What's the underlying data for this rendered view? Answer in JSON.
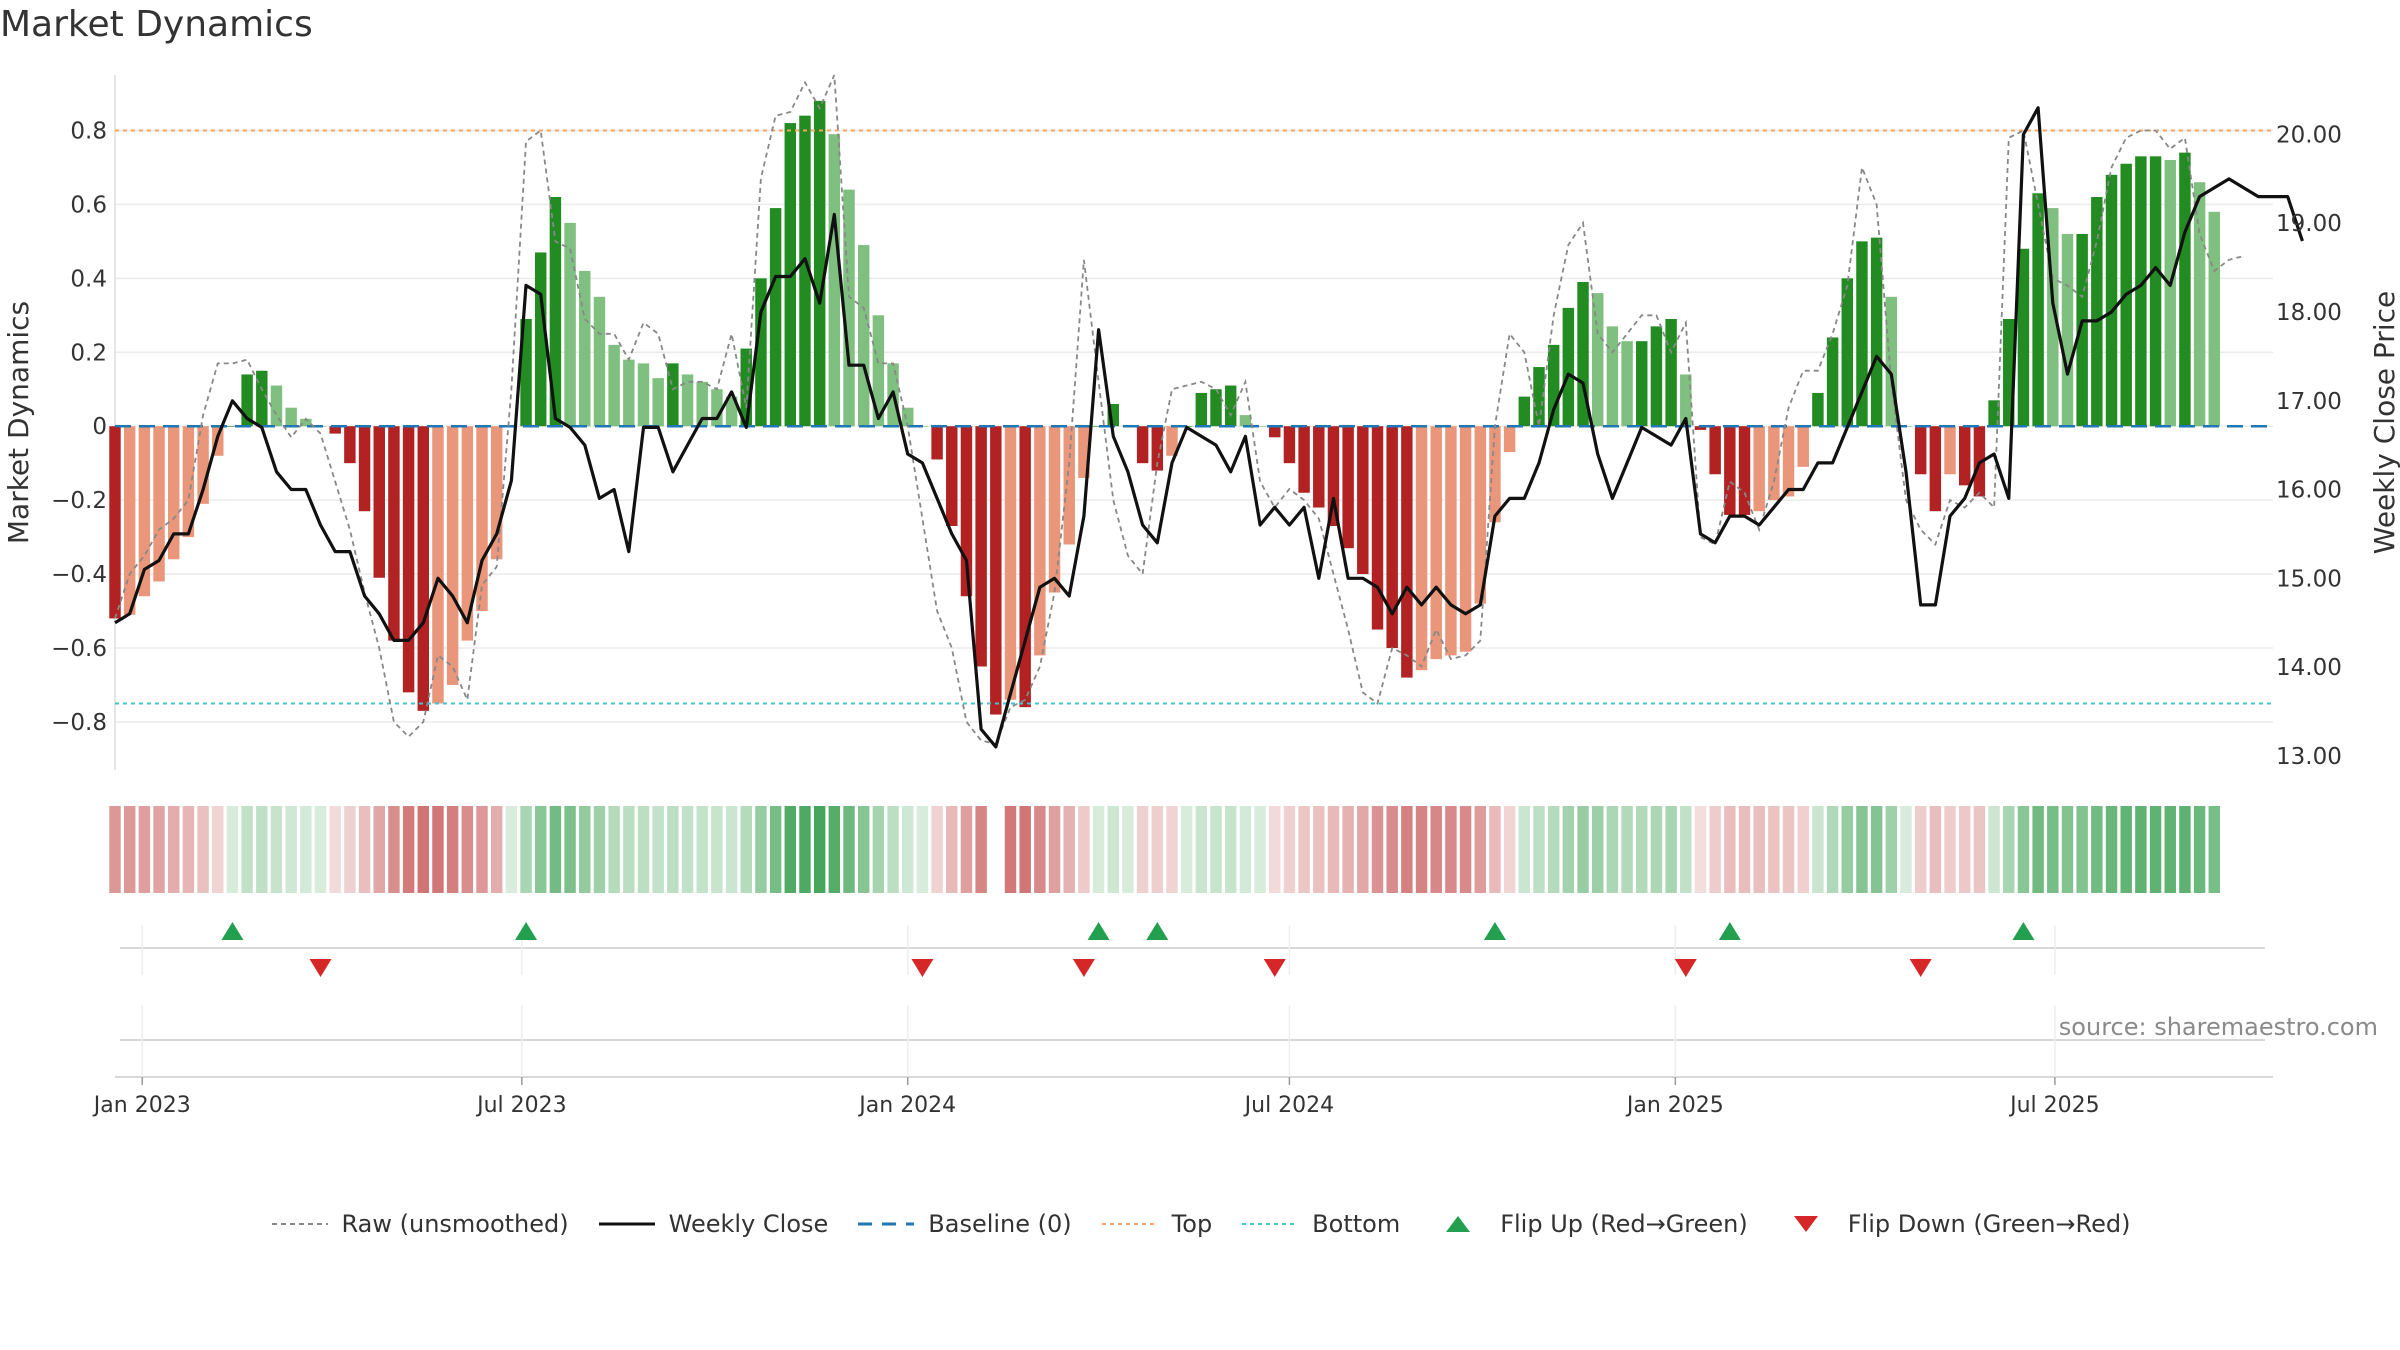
{
  "title": "Market Dynamics",
  "source": "source: sharemaestro.com",
  "chart_data": {
    "type": "bar",
    "title": "Market Dynamics",
    "ylabel_left": "Market Dynamics",
    "ylabel_right": "Weekly Close Price",
    "ylim_left": [
      -0.93,
      0.95
    ],
    "ylim_right": [
      12.84,
      20.67
    ],
    "yticks_left": [
      "0.8",
      "0.6",
      "0.4",
      "0.2",
      "0",
      "−0.2",
      "−0.4",
      "−0.6",
      "−0.8"
    ],
    "yticks_left_values": [
      0.8,
      0.6,
      0.4,
      0.2,
      0,
      -0.2,
      -0.4,
      -0.6,
      -0.8
    ],
    "yticks_right": [
      "20.00",
      "19.00",
      "18.00",
      "17.00",
      "16.00",
      "15.00",
      "14.00",
      "13.00"
    ],
    "yticks_right_values": [
      20,
      19,
      18,
      17,
      16,
      15,
      14,
      13
    ],
    "x_start": "2022-12-19",
    "x_end": "2025-10-13",
    "x_ticks": [
      {
        "label": "Jan 2023",
        "date": "2023-01-01"
      },
      {
        "label": "Jul 2023",
        "date": "2023-07-01"
      },
      {
        "label": "Jan 2024",
        "date": "2024-01-01"
      },
      {
        "label": "Jul 2024",
        "date": "2024-07-01"
      },
      {
        "label": "Jan 2025",
        "date": "2025-01-01"
      },
      {
        "label": "Jul 2025",
        "date": "2025-07-01"
      }
    ],
    "top_line": 0.8,
    "bottom_line": -0.75,
    "baseline": 0,
    "bars": {
      "start_date": "2022-12-19",
      "interval_days": 7,
      "values": [
        -0.52,
        -0.51,
        -0.46,
        -0.42,
        -0.36,
        -0.3,
        -0.21,
        -0.08,
        0.0,
        0.14,
        0.15,
        0.11,
        0.05,
        0.02,
        0.0,
        -0.02,
        -0.1,
        -0.23,
        -0.41,
        -0.58,
        -0.72,
        -0.77,
        -0.75,
        -0.7,
        -0.58,
        -0.5,
        -0.36,
        0.0,
        0.29,
        0.47,
        0.62,
        0.55,
        0.42,
        0.35,
        0.22,
        0.18,
        0.17,
        0.13,
        0.17,
        0.14,
        0.12,
        0.1,
        0.08,
        0.21,
        0.4,
        0.59,
        0.82,
        0.84,
        0.88,
        0.79,
        0.64,
        0.49,
        0.3,
        0.17,
        0.05,
        0.0,
        -0.09,
        -0.27,
        -0.46,
        -0.65,
        -0.78,
        -0.74,
        -0.76,
        -0.62,
        -0.45,
        -0.32,
        -0.14,
        0.0,
        0.06,
        0.0,
        -0.1,
        -0.12,
        -0.08,
        0.0,
        0.09,
        0.1,
        0.11,
        0.03,
        0.0,
        -0.03,
        -0.1,
        -0.18,
        -0.22,
        -0.27,
        -0.33,
        -0.4,
        -0.55,
        -0.6,
        -0.68,
        -0.66,
        -0.63,
        -0.62,
        -0.61,
        -0.48,
        -0.26,
        -0.07,
        0.08,
        0.16,
        0.22,
        0.32,
        0.39,
        0.36,
        0.27,
        0.23,
        0.23,
        0.27,
        0.29,
        0.14,
        -0.01,
        -0.13,
        -0.24,
        -0.24,
        -0.23,
        -0.2,
        -0.19,
        -0.11,
        0.09,
        0.24,
        0.4,
        0.5,
        0.51,
        0.35,
        0.0,
        -0.13,
        -0.23,
        -0.13,
        -0.16,
        -0.19,
        0.07,
        0.29,
        0.48,
        0.63,
        0.59,
        0.52,
        0.52,
        0.62,
        0.68,
        0.71,
        0.73,
        0.73,
        0.72,
        0.74,
        0.66,
        0.58
      ]
    },
    "series": [
      {
        "name": "Weekly Close",
        "axis": "right",
        "values": [
          14.5,
          14.6,
          15.1,
          15.2,
          15.5,
          15.5,
          16.0,
          16.6,
          17.0,
          16.8,
          16.7,
          16.2,
          16.0,
          16.0,
          15.6,
          15.3,
          15.3,
          14.8,
          14.6,
          14.3,
          14.3,
          14.5,
          15.0,
          14.8,
          14.5,
          15.2,
          15.5,
          16.1,
          18.3,
          18.2,
          16.8,
          16.7,
          16.5,
          15.9,
          16.0,
          15.3,
          16.7,
          16.7,
          16.2,
          16.5,
          16.8,
          16.8,
          17.1,
          16.7,
          18.0,
          18.4,
          18.4,
          18.6,
          18.1,
          19.1,
          17.4,
          17.4,
          16.8,
          17.1,
          16.4,
          16.3,
          15.9,
          15.5,
          15.2,
          13.3,
          13.1,
          13.7,
          14.3,
          14.9,
          15.0,
          14.8,
          15.7,
          17.8,
          16.6,
          16.2,
          15.6,
          15.4,
          16.3,
          16.7,
          16.6,
          16.5,
          16.2,
          16.6,
          15.6,
          15.8,
          15.6,
          15.8,
          15.0,
          15.9,
          15.0,
          15.0,
          14.9,
          14.6,
          14.9,
          14.7,
          14.9,
          14.7,
          14.6,
          14.7,
          15.7,
          15.9,
          15.9,
          16.3,
          16.9,
          17.3,
          17.2,
          16.4,
          15.9,
          16.3,
          16.7,
          16.6,
          16.5,
          16.8,
          15.5,
          15.4,
          15.7,
          15.7,
          15.6,
          15.8,
          16.0,
          16.0,
          16.3,
          16.3,
          16.7,
          17.1,
          17.5,
          17.3,
          16.2,
          14.7,
          14.7,
          15.7,
          15.9,
          16.3,
          16.4,
          15.9,
          20.0,
          20.3,
          18.1,
          17.3,
          17.9,
          17.9,
          18.0,
          18.2,
          18.3,
          18.5,
          18.3,
          18.9,
          19.3,
          19.4,
          19.5,
          19.4,
          19.3,
          19.3,
          19.3,
          18.8
        ]
      },
      {
        "name": "Raw (unsmoothed)",
        "axis": "left",
        "values": [
          -0.52,
          -0.4,
          -0.35,
          -0.28,
          -0.25,
          -0.2,
          0.03,
          0.17,
          0.17,
          0.18,
          0.1,
          0.03,
          -0.03,
          0.02,
          -0.02,
          -0.15,
          -0.28,
          -0.45,
          -0.6,
          -0.8,
          -0.84,
          -0.8,
          -0.62,
          -0.65,
          -0.74,
          -0.43,
          -0.38,
          0.1,
          0.77,
          0.8,
          0.5,
          0.48,
          0.29,
          0.25,
          0.25,
          0.18,
          0.28,
          0.25,
          0.1,
          0.12,
          0.12,
          0.1,
          0.25,
          0.05,
          0.67,
          0.84,
          0.85,
          0.93,
          0.86,
          0.95,
          0.35,
          0.32,
          0.17,
          0.17,
          0.0,
          -0.25,
          -0.5,
          -0.6,
          -0.8,
          -0.85,
          -0.86,
          -0.76,
          -0.74,
          -0.65,
          -0.45,
          -0.1,
          0.45,
          0.12,
          -0.2,
          -0.35,
          -0.4,
          -0.1,
          0.1,
          0.11,
          0.12,
          0.1,
          0.03,
          0.12,
          -0.15,
          -0.22,
          -0.17,
          -0.2,
          -0.25,
          -0.4,
          -0.55,
          -0.72,
          -0.75,
          -0.6,
          -0.62,
          -0.65,
          -0.55,
          -0.63,
          -0.62,
          -0.58,
          0.0,
          0.25,
          0.2,
          0.0,
          0.3,
          0.49,
          0.55,
          0.25,
          0.2,
          0.25,
          0.3,
          0.3,
          0.2,
          0.28,
          -0.3,
          -0.32,
          -0.15,
          -0.18,
          -0.28,
          -0.15,
          0.05,
          0.15,
          0.15,
          0.25,
          0.38,
          0.7,
          0.6,
          0.12,
          -0.2,
          -0.28,
          -0.32,
          -0.2,
          -0.22,
          -0.18,
          -0.22,
          0.78,
          0.8,
          0.6,
          0.4,
          0.38,
          0.35,
          0.5,
          0.7,
          0.78,
          0.8,
          0.8,
          0.75,
          0.78,
          0.52,
          0.42,
          0.45,
          0.46
        ]
      }
    ],
    "flip_up_indices": [
      8,
      28,
      67,
      71,
      94,
      110,
      130
    ],
    "flip_down_indices": [
      14,
      55,
      66,
      79,
      107,
      123
    ],
    "gap_index": 60,
    "legend": [
      {
        "label": "Raw (unsmoothed)",
        "style": "dashed-gray"
      },
      {
        "label": "Weekly Close",
        "style": "solid-black"
      },
      {
        "label": "Baseline (0)",
        "style": "dashed-blue"
      },
      {
        "label": "Top",
        "style": "dotted-orange"
      },
      {
        "label": "Bottom",
        "style": "dotted-cyan"
      },
      {
        "label": "Flip Up (Red→Green)",
        "style": "triangle-up-green"
      },
      {
        "label": "Flip Down (Green→Red)",
        "style": "triangle-down-red"
      }
    ],
    "legend_placement": "bottom-center",
    "grid": true
  },
  "colors": {
    "green_dark": "#228b22",
    "green_light": "#7fbf7f",
    "red_dark": "#b22222",
    "red_light": "#e9967a",
    "top_line": "#f4a460",
    "bottom_line": "#40c4d0",
    "baseline": "#1f77b4",
    "flip_up": "#22a050",
    "flip_down": "#d62728",
    "close_line": "#111111",
    "raw_line": "#888888"
  }
}
